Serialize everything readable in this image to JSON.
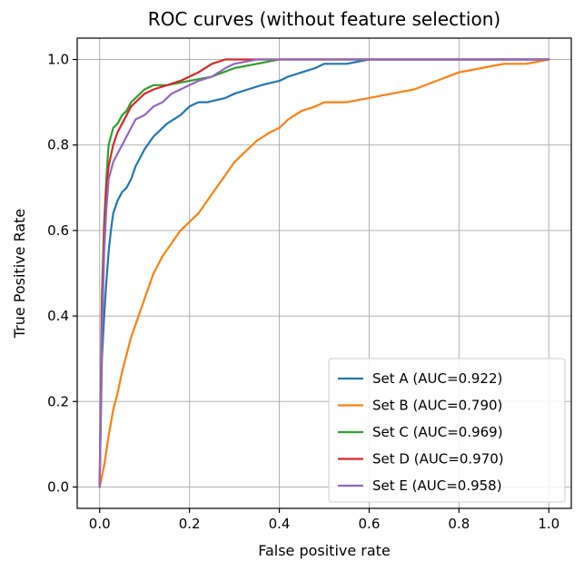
{
  "chart_data": {
    "type": "line",
    "title": "ROC curves (without feature selection)",
    "xlabel": "False positive rate",
    "ylabel": "True Positive Rate",
    "xlim": [
      -0.05,
      1.05
    ],
    "ylim": [
      -0.05,
      1.05
    ],
    "xticks": [
      0.0,
      0.2,
      0.4,
      0.6,
      0.8,
      1.0
    ],
    "yticks": [
      0.0,
      0.2,
      0.4,
      0.6,
      0.8,
      1.0
    ],
    "xtick_labels": [
      "0.0",
      "0.2",
      "0.4",
      "0.6",
      "0.8",
      "1.0"
    ],
    "ytick_labels": [
      "0.0",
      "0.2",
      "0.4",
      "0.6",
      "0.8",
      "1.0"
    ],
    "grid": true,
    "legend_position": "lower-right",
    "series": [
      {
        "name": "Set A (AUC=0.922)",
        "color": "#1f77b4",
        "x": [
          0.0,
          0.005,
          0.01,
          0.015,
          0.02,
          0.025,
          0.03,
          0.04,
          0.05,
          0.06,
          0.07,
          0.08,
          0.1,
          0.12,
          0.15,
          0.18,
          0.2,
          0.22,
          0.24,
          0.28,
          0.3,
          0.33,
          0.36,
          0.4,
          0.42,
          0.45,
          0.48,
          0.5,
          0.55,
          0.6,
          0.7,
          0.8,
          0.9,
          1.0
        ],
        "y": [
          0.0,
          0.3,
          0.4,
          0.48,
          0.55,
          0.6,
          0.64,
          0.67,
          0.69,
          0.7,
          0.72,
          0.75,
          0.79,
          0.82,
          0.85,
          0.87,
          0.89,
          0.9,
          0.9,
          0.91,
          0.92,
          0.93,
          0.94,
          0.95,
          0.96,
          0.97,
          0.98,
          0.99,
          0.99,
          1.0,
          1.0,
          1.0,
          1.0,
          1.0
        ]
      },
      {
        "name": "Set B (AUC=0.790)",
        "color": "#ff7f0e",
        "x": [
          0.0,
          0.01,
          0.02,
          0.03,
          0.04,
          0.05,
          0.06,
          0.07,
          0.08,
          0.09,
          0.1,
          0.11,
          0.12,
          0.14,
          0.16,
          0.18,
          0.2,
          0.22,
          0.24,
          0.26,
          0.28,
          0.3,
          0.32,
          0.35,
          0.38,
          0.4,
          0.42,
          0.45,
          0.48,
          0.5,
          0.55,
          0.6,
          0.65,
          0.7,
          0.75,
          0.8,
          0.85,
          0.9,
          0.95,
          1.0
        ],
        "y": [
          0.0,
          0.05,
          0.12,
          0.18,
          0.22,
          0.27,
          0.31,
          0.35,
          0.38,
          0.41,
          0.44,
          0.47,
          0.5,
          0.54,
          0.57,
          0.6,
          0.62,
          0.64,
          0.67,
          0.7,
          0.73,
          0.76,
          0.78,
          0.81,
          0.83,
          0.84,
          0.86,
          0.88,
          0.89,
          0.9,
          0.9,
          0.91,
          0.92,
          0.93,
          0.95,
          0.97,
          0.98,
          0.99,
          0.99,
          1.0
        ]
      },
      {
        "name": "Set C (AUC=0.969)",
        "color": "#2ca02c",
        "x": [
          0.0,
          0.005,
          0.01,
          0.015,
          0.02,
          0.03,
          0.04,
          0.05,
          0.06,
          0.07,
          0.08,
          0.1,
          0.12,
          0.15,
          0.2,
          0.25,
          0.3,
          0.35,
          0.4,
          0.5,
          0.6,
          0.8,
          1.0
        ],
        "y": [
          0.0,
          0.45,
          0.62,
          0.72,
          0.8,
          0.84,
          0.85,
          0.87,
          0.88,
          0.9,
          0.91,
          0.93,
          0.94,
          0.94,
          0.95,
          0.96,
          0.98,
          0.99,
          1.0,
          1.0,
          1.0,
          1.0,
          1.0
        ]
      },
      {
        "name": "Set D (AUC=0.970)",
        "color": "#d62728",
        "x": [
          0.0,
          0.005,
          0.01,
          0.015,
          0.02,
          0.03,
          0.04,
          0.05,
          0.06,
          0.07,
          0.08,
          0.1,
          0.12,
          0.15,
          0.18,
          0.2,
          0.22,
          0.25,
          0.28,
          0.3,
          0.35,
          0.4,
          0.5,
          0.6,
          0.8,
          1.0
        ],
        "y": [
          0.0,
          0.4,
          0.6,
          0.7,
          0.75,
          0.8,
          0.83,
          0.85,
          0.87,
          0.89,
          0.9,
          0.92,
          0.93,
          0.94,
          0.95,
          0.96,
          0.97,
          0.99,
          1.0,
          1.0,
          1.0,
          1.0,
          1.0,
          1.0,
          1.0,
          1.0
        ]
      },
      {
        "name": "Set E (AUC=0.958)",
        "color": "#9467bd",
        "x": [
          0.0,
          0.005,
          0.01,
          0.015,
          0.02,
          0.03,
          0.04,
          0.05,
          0.06,
          0.07,
          0.08,
          0.1,
          0.12,
          0.14,
          0.16,
          0.18,
          0.2,
          0.22,
          0.25,
          0.28,
          0.3,
          0.35,
          0.4,
          0.5,
          0.6,
          0.8,
          1.0
        ],
        "y": [
          0.0,
          0.35,
          0.55,
          0.65,
          0.72,
          0.76,
          0.78,
          0.8,
          0.82,
          0.84,
          0.86,
          0.87,
          0.89,
          0.9,
          0.92,
          0.93,
          0.94,
          0.95,
          0.96,
          0.98,
          0.99,
          1.0,
          1.0,
          1.0,
          1.0,
          1.0,
          1.0
        ]
      }
    ]
  }
}
